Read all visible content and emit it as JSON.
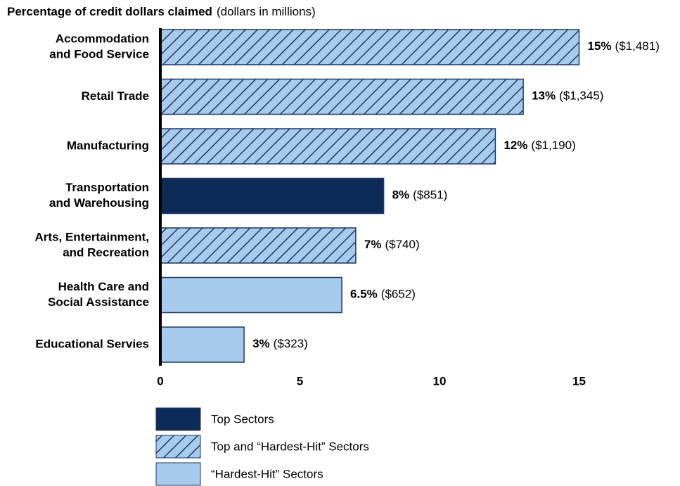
{
  "chart_data": {
    "type": "hbar",
    "title": "Percentage of credit dollars claimed",
    "subtitle": "(dollars in millions)",
    "categories": [
      [
        "Accommodation",
        "and Food Service"
      ],
      [
        "Retail Trade"
      ],
      [
        "Manufacturing"
      ],
      [
        "Transportation",
        "and Warehousing"
      ],
      [
        "Arts, Entertainment,",
        "and Recreation"
      ],
      [
        "Health Care and",
        "Social Assistance"
      ],
      [
        "Educational Servies"
      ]
    ],
    "series": [
      {
        "name": "Top Sectors",
        "color": "#0c2b57",
        "hatch": false,
        "values": [
          null,
          null,
          null,
          8,
          null,
          null,
          null
        ],
        "value_labels": [
          null,
          null,
          null,
          "8%",
          null,
          null,
          null
        ],
        "dollars": [
          null,
          null,
          null,
          851,
          null,
          null,
          null
        ],
        "dollar_labels": [
          null,
          null,
          null,
          "($851)",
          null,
          null,
          null
        ]
      },
      {
        "name": "Top and “Hardest-Hit” Sectors",
        "color": "#a6cbec",
        "hatch": true,
        "hatch_color": "#1f3864",
        "values": [
          15,
          13,
          12,
          null,
          7,
          null,
          null
        ],
        "value_labels": [
          "15%",
          "13%",
          "12%",
          null,
          "7%",
          null,
          null
        ],
        "dollars": [
          1481,
          1345,
          1190,
          null,
          740,
          null,
          null
        ],
        "dollar_labels": [
          "($1,481)",
          "($1,345)",
          "($1,190)",
          null,
          "($740)",
          null,
          null
        ]
      },
      {
        "name": "“Hardest-Hit” Sectors",
        "color": "#a6cbec",
        "hatch": false,
        "values": [
          null,
          null,
          null,
          null,
          null,
          6.5,
          3
        ],
        "value_labels": [
          null,
          null,
          null,
          null,
          null,
          "6.5%",
          "3%"
        ],
        "dollars": [
          null,
          null,
          null,
          null,
          null,
          652,
          323
        ],
        "dollar_labels": [
          null,
          null,
          null,
          null,
          null,
          "($652)",
          "($323)"
        ]
      }
    ],
    "xlim": [
      0,
      15
    ],
    "xticks": [
      0,
      5,
      10,
      15
    ],
    "legend": "bottom-left"
  }
}
